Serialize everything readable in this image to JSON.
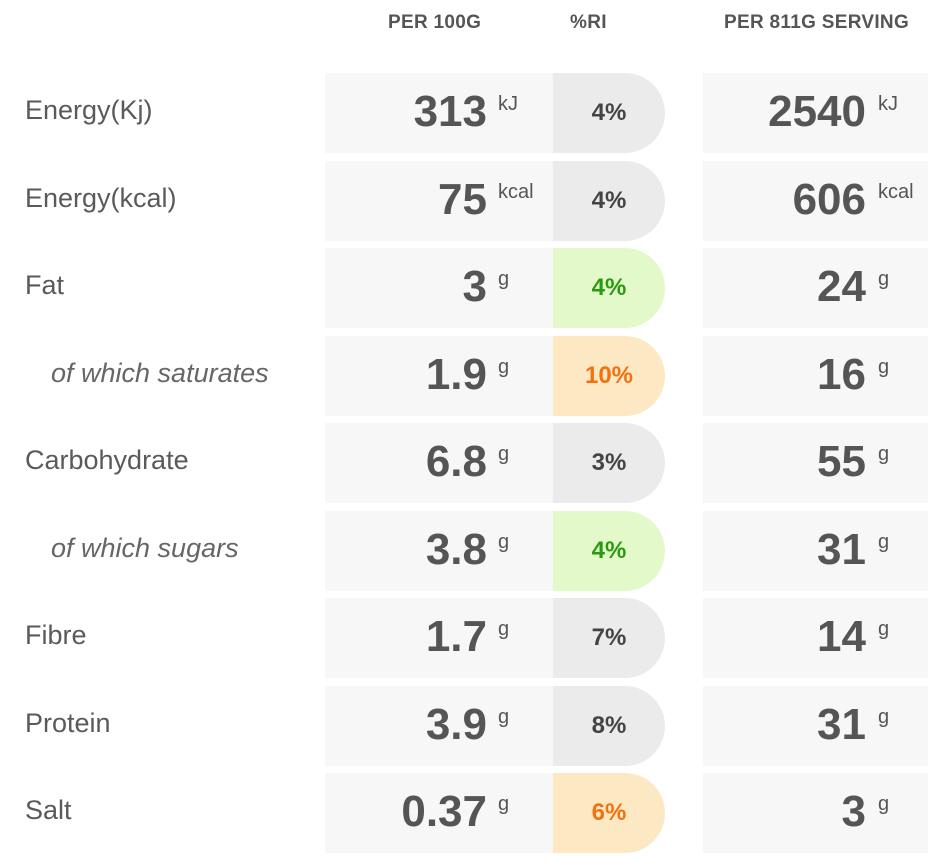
{
  "headers": {
    "per_100g": "PER 100G",
    "ri": "%RI",
    "per_serving": "PER 811G SERVING"
  },
  "rows": [
    {
      "label": "Energy(Kj)",
      "sub": false,
      "per100": "313",
      "per100_unit": "kJ",
      "ri": "4%",
      "ri_status": "neutral",
      "serving": "2540",
      "serving_unit": "kJ"
    },
    {
      "label": "Energy(kcal)",
      "sub": false,
      "per100": "75",
      "per100_unit": "kcal",
      "ri": "4%",
      "ri_status": "neutral",
      "serving": "606",
      "serving_unit": "kcal"
    },
    {
      "label": "Fat",
      "sub": false,
      "per100": "3",
      "per100_unit": "g",
      "ri": "4%",
      "ri_status": "low",
      "serving": "24",
      "serving_unit": "g"
    },
    {
      "label": "of which saturates",
      "sub": true,
      "per100": "1.9",
      "per100_unit": "g",
      "ri": "10%",
      "ri_status": "medium",
      "serving": "16",
      "serving_unit": "g"
    },
    {
      "label": "Carbohydrate",
      "sub": false,
      "per100": "6.8",
      "per100_unit": "g",
      "ri": "3%",
      "ri_status": "neutral",
      "serving": "55",
      "serving_unit": "g"
    },
    {
      "label": "of which sugars",
      "sub": true,
      "per100": "3.8",
      "per100_unit": "g",
      "ri": "4%",
      "ri_status": "low",
      "serving": "31",
      "serving_unit": "g"
    },
    {
      "label": "Fibre",
      "sub": false,
      "per100": "1.7",
      "per100_unit": "g",
      "ri": "7%",
      "ri_status": "neutral",
      "serving": "14",
      "serving_unit": "g"
    },
    {
      "label": "Protein",
      "sub": false,
      "per100": "3.9",
      "per100_unit": "g",
      "ri": "8%",
      "ri_status": "neutral",
      "serving": "31",
      "serving_unit": "g"
    },
    {
      "label": "Salt",
      "sub": false,
      "per100": "0.37",
      "per100_unit": "g",
      "ri": "6%",
      "ri_status": "medium",
      "serving": "3",
      "serving_unit": "g"
    }
  ],
  "colors": {
    "neutral_bg": "#ebebeb",
    "low_bg": "#e4f9c9",
    "low_text": "#2a9a10",
    "medium_bg": "#fde8c4",
    "medium_text": "#f17211"
  }
}
